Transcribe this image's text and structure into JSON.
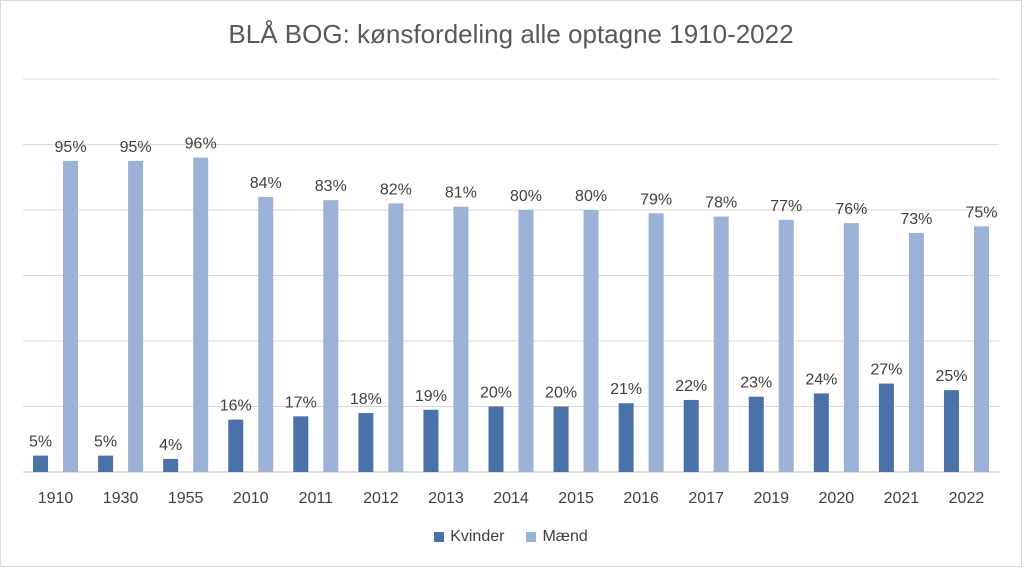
{
  "chart_data": {
    "type": "bar",
    "title": "BLÅ BOG: kønsfordeling alle optagne 1910-2022",
    "xlabel": "",
    "ylabel": "",
    "ylim": [
      0,
      1.2
    ],
    "grid": true,
    "legend_position": "bottom",
    "categories": [
      "1910",
      "1930",
      "1955",
      "2010",
      "2011",
      "2012",
      "2013",
      "2014",
      "2015",
      "2016",
      "2017",
      "2019",
      "2020",
      "2021",
      "2022"
    ],
    "series": [
      {
        "name": "Kvinder",
        "color": "#4a72a8",
        "values": [
          0.05,
          0.05,
          0.04,
          0.16,
          0.17,
          0.18,
          0.19,
          0.2,
          0.2,
          0.21,
          0.22,
          0.23,
          0.24,
          0.27,
          0.25
        ],
        "labels": [
          "5%",
          "5%",
          "4%",
          "16%",
          "17%",
          "18%",
          "19%",
          "20%",
          "20%",
          "21%",
          "22%",
          "23%",
          "24%",
          "27%",
          "25%"
        ]
      },
      {
        "name": "Mænd",
        "color": "#9bb1d6",
        "values": [
          0.95,
          0.95,
          0.96,
          0.84,
          0.83,
          0.82,
          0.81,
          0.8,
          0.8,
          0.79,
          0.78,
          0.77,
          0.76,
          0.73,
          0.75
        ],
        "labels": [
          "95%",
          "95%",
          "96%",
          "84%",
          "83%",
          "82%",
          "81%",
          "80%",
          "80%",
          "79%",
          "78%",
          "77%",
          "76%",
          "73%",
          "75%"
        ]
      }
    ]
  }
}
